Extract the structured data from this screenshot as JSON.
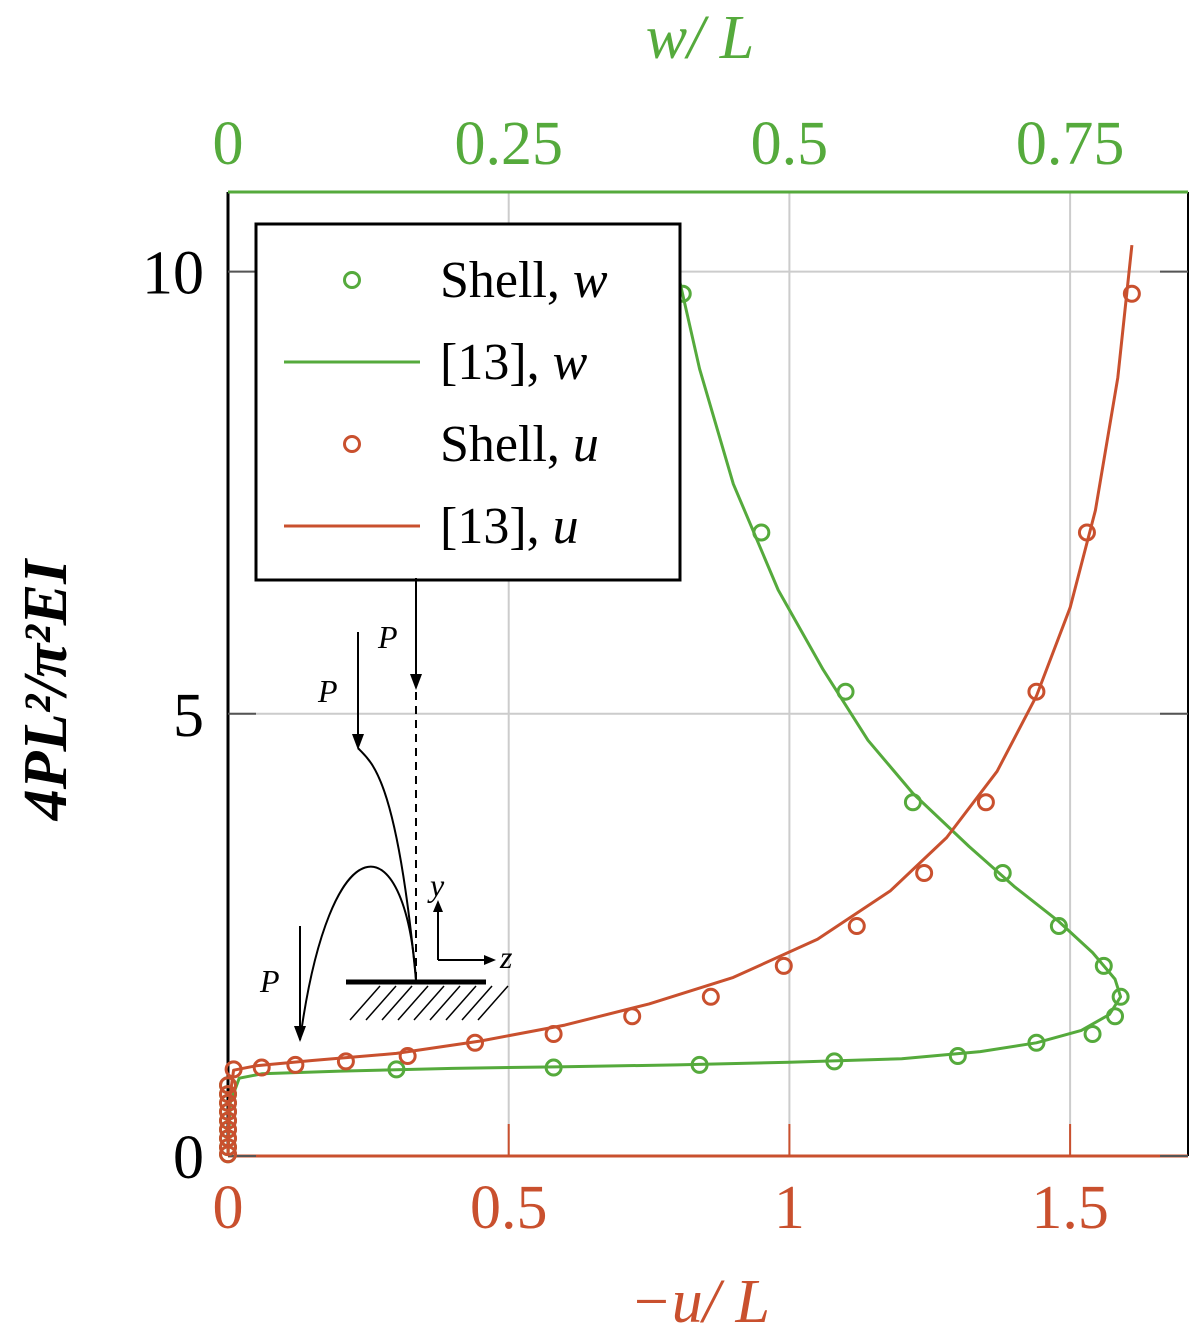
{
  "chart_data": {
    "type": "line",
    "ylabel": "4PL²/π²EI",
    "xlabel_bottom": "−u/ L",
    "xlabel_top": "w/ L",
    "xlim_bottom": [
      0,
      1.71
    ],
    "xlim_top": [
      0,
      0.855
    ],
    "ylim": [
      0,
      10.9
    ],
    "xticks_bottom": [
      "0",
      "0.5",
      "1",
      "1.5"
    ],
    "xticks_bottom_values": [
      0,
      0.5,
      1,
      1.5
    ],
    "xticks_top": [
      "0",
      "0.25",
      "0.5",
      "0.75"
    ],
    "xticks_top_values": [
      0,
      0.25,
      0.5,
      0.75
    ],
    "yticks": [
      "0",
      "5",
      "10"
    ],
    "yticks_values": [
      0,
      5,
      10
    ],
    "grid": true,
    "legend_position": "top-left",
    "colors": {
      "w": "#55aa3c",
      "u": "#c9502e",
      "frame": "#000000",
      "grid": "#cccccc"
    },
    "series": [
      {
        "name": "Shell, w",
        "axis": "top",
        "style": "markers",
        "color": "#55aa3c",
        "x": [
          0,
          0,
          0,
          0,
          0,
          0,
          0,
          0,
          0,
          0.15,
          0.29,
          0.42,
          0.54,
          0.65,
          0.72,
          0.77,
          0.79,
          0.795,
          0.78,
          0.74,
          0.69,
          0.61,
          0.55,
          0.475,
          0.405
        ],
        "y": [
          0.02,
          0.1,
          0.2,
          0.3,
          0.4,
          0.5,
          0.6,
          0.7,
          0.8,
          0.98,
          1.0,
          1.03,
          1.07,
          1.13,
          1.28,
          1.38,
          1.58,
          1.8,
          2.15,
          2.6,
          3.2,
          4.0,
          5.25,
          7.05,
          9.75
        ]
      },
      {
        "name": "[13], w",
        "axis": "top",
        "style": "line",
        "color": "#55aa3c",
        "x": [
          0,
          0.002,
          0.01,
          0.03,
          0.1,
          0.2,
          0.3,
          0.4,
          0.5,
          0.6,
          0.67,
          0.72,
          0.76,
          0.785,
          0.795,
          0.79,
          0.77,
          0.74,
          0.7,
          0.66,
          0.61,
          0.57,
          0.53,
          0.49,
          0.45,
          0.42,
          0.395
        ],
        "y": [
          0.0,
          0.6,
          0.88,
          0.93,
          0.96,
          0.99,
          1.01,
          1.03,
          1.06,
          1.1,
          1.18,
          1.28,
          1.42,
          1.6,
          1.8,
          2.0,
          2.3,
          2.65,
          3.05,
          3.5,
          4.1,
          4.7,
          5.5,
          6.4,
          7.6,
          8.9,
          10.3
        ]
      },
      {
        "name": "Shell, u",
        "axis": "bottom",
        "style": "markers",
        "color": "#c9502e",
        "x": [
          0,
          0,
          0,
          0,
          0,
          0,
          0,
          0,
          0,
          0.01,
          0.06,
          0.12,
          0.21,
          0.32,
          0.44,
          0.58,
          0.72,
          0.86,
          0.99,
          1.12,
          1.24,
          1.35,
          1.44,
          1.53,
          1.61
        ],
        "y": [
          0.02,
          0.1,
          0.2,
          0.3,
          0.4,
          0.5,
          0.6,
          0.7,
          0.8,
          0.98,
          1.0,
          1.03,
          1.07,
          1.13,
          1.28,
          1.38,
          1.58,
          1.8,
          2.15,
          2.6,
          3.2,
          4.0,
          5.25,
          7.05,
          9.75
        ]
      },
      {
        "name": "[13], u",
        "axis": "bottom",
        "style": "line",
        "color": "#c9502e",
        "x": [
          0,
          0.002,
          0.01,
          0.05,
          0.15,
          0.3,
          0.45,
          0.6,
          0.75,
          0.9,
          1.05,
          1.18,
          1.28,
          1.37,
          1.44,
          1.5,
          1.545,
          1.585,
          1.61
        ],
        "y": [
          0.0,
          0.6,
          0.97,
          1.02,
          1.08,
          1.16,
          1.3,
          1.48,
          1.72,
          2.02,
          2.45,
          3.0,
          3.6,
          4.35,
          5.2,
          6.2,
          7.3,
          8.8,
          10.3
        ]
      }
    ],
    "legend": [
      {
        "label": "Shell, w",
        "marker": "circle",
        "color": "#55aa3c"
      },
      {
        "label": "[13], w",
        "marker": "line",
        "color": "#55aa3c"
      },
      {
        "label": "Shell, u",
        "marker": "circle",
        "color": "#c9502e"
      },
      {
        "label": "[13], u",
        "marker": "line",
        "color": "#c9502e"
      }
    ],
    "inset": {
      "load_labels": [
        "P",
        "P",
        "P"
      ],
      "y_axis_label": "y",
      "z_axis_label": "z"
    }
  }
}
